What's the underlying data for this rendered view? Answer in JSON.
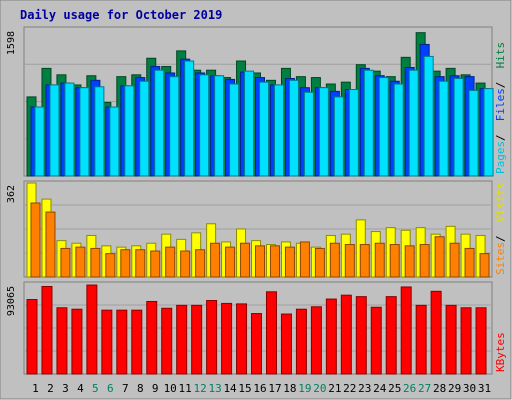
{
  "chart_data": {
    "type": "bar",
    "title": "Daily usage for October 2019",
    "categories": [
      "1",
      "2",
      "3",
      "4",
      "5",
      "6",
      "7",
      "8",
      "9",
      "10",
      "11",
      "12",
      "13",
      "14",
      "15",
      "16",
      "17",
      "18",
      "19",
      "20",
      "21",
      "22",
      "23",
      "24",
      "25",
      "26",
      "27",
      "28",
      "29",
      "30",
      "31"
    ],
    "weekend_categories": [
      "5",
      "6",
      "12",
      "13",
      "19",
      "20",
      "26",
      "27"
    ],
    "panels": [
      {
        "name": "hits-files-pages",
        "scale_label": "1598",
        "ylim": [
          0,
          1598
        ],
        "side_labels": [
          "Pages",
          "Files",
          "Hits"
        ],
        "series": [
          {
            "name": "Hits",
            "color": "#008040",
            "values": [
              860,
              1170,
              1100,
              990,
              1090,
              800,
              1080,
              1100,
              1280,
              1190,
              1360,
              1150,
              1150,
              1070,
              1250,
              1120,
              1040,
              1170,
              1080,
              1070,
              1000,
              1020,
              1210,
              1140,
              1080,
              1290,
              1558,
              1140,
              1170,
              1100,
              1010
            ]
          },
          {
            "name": "Files",
            "color": "#0040ff",
            "values": [
              750,
              990,
              1010,
              960,
              1040,
              750,
              980,
              1070,
              1190,
              1120,
              1270,
              1120,
              1090,
              1050,
              1130,
              1070,
              990,
              1060,
              960,
              960,
              920,
              940,
              1170,
              1090,
              1030,
              1180,
              1430,
              1080,
              1090,
              1080,
              950
            ]
          },
          {
            "name": "Pages",
            "color": "#00e0ff",
            "values": [
              750,
              990,
              1010,
              960,
              970,
              750,
              980,
              1030,
              1150,
              1080,
              1250,
              1100,
              1090,
              1000,
              1140,
              1020,
              990,
              1040,
              910,
              960,
              860,
              940,
              1150,
              1070,
              1000,
              1150,
              1300,
              1030,
              1060,
              930,
              950
            ]
          }
        ]
      },
      {
        "name": "visits-sites",
        "scale_label": "362",
        "ylim": [
          0,
          362
        ],
        "side_labels": [
          "Sites",
          "Visits"
        ],
        "series": [
          {
            "name": "Visits",
            "color": "#ffff00",
            "values": [
              362,
              300,
              140,
              130,
              160,
              120,
              115,
              120,
              130,
              165,
              145,
              170,
              205,
              135,
              185,
              140,
              125,
              135,
              130,
              115,
              160,
              165,
              220,
              175,
              190,
              180,
              190,
              165,
              195,
              165,
              160
            ]
          },
          {
            "name": "Sites",
            "color": "#ff8000",
            "values": [
              285,
              250,
              110,
              115,
              110,
              90,
              105,
              105,
              100,
              115,
              100,
              105,
              130,
              115,
              130,
              120,
              120,
              115,
              135,
              110,
              130,
              125,
              125,
              130,
              125,
              120,
              125,
              155,
              130,
              110,
              90
            ]
          }
        ]
      },
      {
        "name": "kbytes",
        "scale_label": "93065",
        "ylim": [
          0,
          93065
        ],
        "side_labels": [
          "KBytes"
        ],
        "series": [
          {
            "name": "KBytes",
            "color": "#ff0000",
            "values": [
              77000,
              90500,
              68500,
              67000,
              92000,
              66000,
              66000,
              66000,
              75000,
              68000,
              71000,
              71000,
              76000,
              73000,
              72500,
              62500,
              85000,
              62000,
              67000,
              69500,
              77500,
              81500,
              80000,
              69000,
              80000,
              90000,
              71000,
              85500,
              71000,
              68500,
              68500
            ]
          }
        ]
      }
    ],
    "grid": true,
    "legend": "right-side vertical labels"
  }
}
